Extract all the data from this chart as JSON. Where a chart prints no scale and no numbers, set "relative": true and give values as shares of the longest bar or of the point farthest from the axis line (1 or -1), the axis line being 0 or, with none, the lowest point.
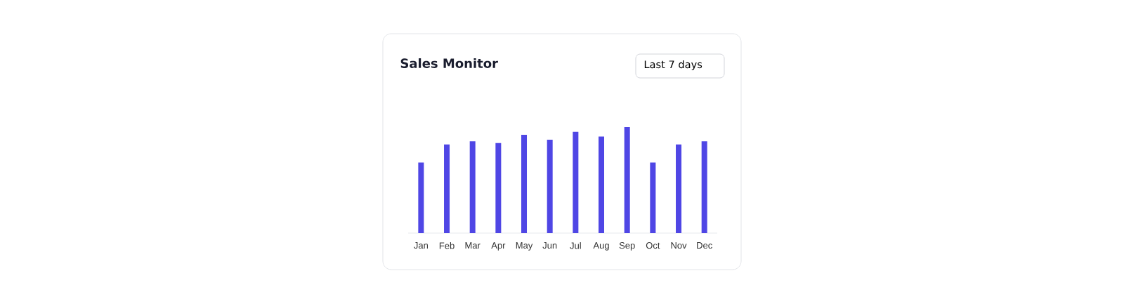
{
  "chart_data": {
    "type": "bar",
    "title": "Sales Monitor",
    "annotations": [
      "Last 7 days"
    ],
    "categories": [
      "Jan",
      "Feb",
      "Mar",
      "Apr",
      "May",
      "Jun",
      "Jul",
      "Aug",
      "Sep",
      "Oct",
      "Nov",
      "Dec"
    ],
    "values": [
      0.665,
      0.836,
      0.865,
      0.849,
      0.927,
      0.88,
      0.956,
      0.911,
      1,
      0.665,
      0.836,
      0.865
    ],
    "color": "#4f46e5",
    "relative": true
  }
}
